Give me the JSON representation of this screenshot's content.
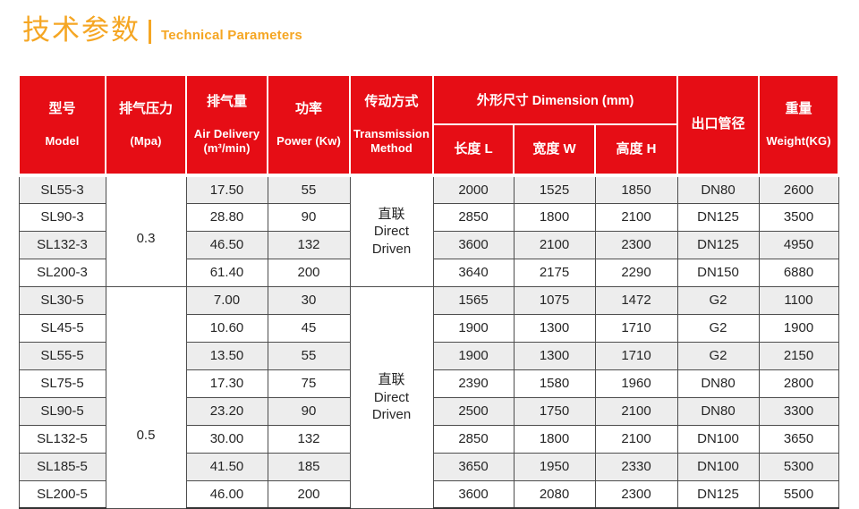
{
  "title": {
    "zh": "技术参数",
    "en": "Technical Parameters"
  },
  "colors": {
    "accent_orange": "#F5A623",
    "header_red": "#E60D15",
    "stripe_gray": "#EDEDED",
    "row_border": "#4D4D4D",
    "body_text": "#262626",
    "header_text": "#FFFFFF"
  },
  "table": {
    "headers": {
      "model": {
        "zh": "型号",
        "en": "Model"
      },
      "pressure": {
        "zh": "排气压力",
        "en": "(Mpa)"
      },
      "air_delivery": {
        "zh": "排气量",
        "en": "Air Delivery\n(m³/min)"
      },
      "power": {
        "zh": "功率",
        "en": "Power (Kw)"
      },
      "transmission": {
        "zh": "传动方式",
        "en": "Transmission\nMethod"
      },
      "dimension_group": "外形尺寸 Dimension (mm)",
      "length": "长度 L",
      "width": "宽度 W",
      "height": "高度 H",
      "outlet": "出口管径",
      "weight": {
        "zh": "重量",
        "en": "Weight(KG)"
      }
    },
    "groups": [
      {
        "pressure": "0.3",
        "transmission": "直联\nDirect\nDriven",
        "rows": [
          {
            "model": "SL55-3",
            "air_delivery": "17.50",
            "power": "55",
            "length": "2000",
            "width": "1525",
            "height": "1850",
            "outlet": "DN80",
            "weight": "2600"
          },
          {
            "model": "SL90-3",
            "air_delivery": "28.80",
            "power": "90",
            "length": "2850",
            "width": "1800",
            "height": "2100",
            "outlet": "DN125",
            "weight": "3500"
          },
          {
            "model": "SL132-3",
            "air_delivery": "46.50",
            "power": "132",
            "length": "3600",
            "width": "2100",
            "height": "2300",
            "outlet": "DN125",
            "weight": "4950"
          },
          {
            "model": "SL200-3",
            "air_delivery": "61.40",
            "power": "200",
            "length": "3640",
            "width": "2175",
            "height": "2290",
            "outlet": "DN150",
            "weight": "6880"
          }
        ]
      },
      {
        "pressure": "0.5",
        "transmission": "直联\nDirect\nDriven",
        "rows": [
          {
            "model": "SL30-5",
            "air_delivery": "7.00",
            "power": "30",
            "length": "1565",
            "width": "1075",
            "height": "1472",
            "outlet": "G2",
            "weight": "1100"
          },
          {
            "model": "SL45-5",
            "air_delivery": "10.60",
            "power": "45",
            "length": "1900",
            "width": "1300",
            "height": "1710",
            "outlet": "G2",
            "weight": "1900"
          },
          {
            "model": "SL55-5",
            "air_delivery": "13.50",
            "power": "55",
            "length": "1900",
            "width": "1300",
            "height": "1710",
            "outlet": "G2",
            "weight": "2150"
          },
          {
            "model": "SL75-5",
            "air_delivery": "17.30",
            "power": "75",
            "length": "2390",
            "width": "1580",
            "height": "1960",
            "outlet": "DN80",
            "weight": "2800"
          },
          {
            "model": "SL90-5",
            "air_delivery": "23.20",
            "power": "90",
            "length": "2500",
            "width": "1750",
            "height": "2100",
            "outlet": "DN80",
            "weight": "3300"
          },
          {
            "model": "SL132-5",
            "air_delivery": "30.00",
            "power": "132",
            "length": "2850",
            "width": "1800",
            "height": "2100",
            "outlet": "DN100",
            "weight": "3650"
          },
          {
            "model": "SL185-5",
            "air_delivery": "41.50",
            "power": "185",
            "length": "3650",
            "width": "1950",
            "height": "2330",
            "outlet": "DN100",
            "weight": "5300"
          },
          {
            "model": "SL200-5",
            "air_delivery": "46.00",
            "power": "200",
            "length": "3600",
            "width": "2080",
            "height": "2300",
            "outlet": "DN125",
            "weight": "5500"
          }
        ]
      }
    ]
  }
}
